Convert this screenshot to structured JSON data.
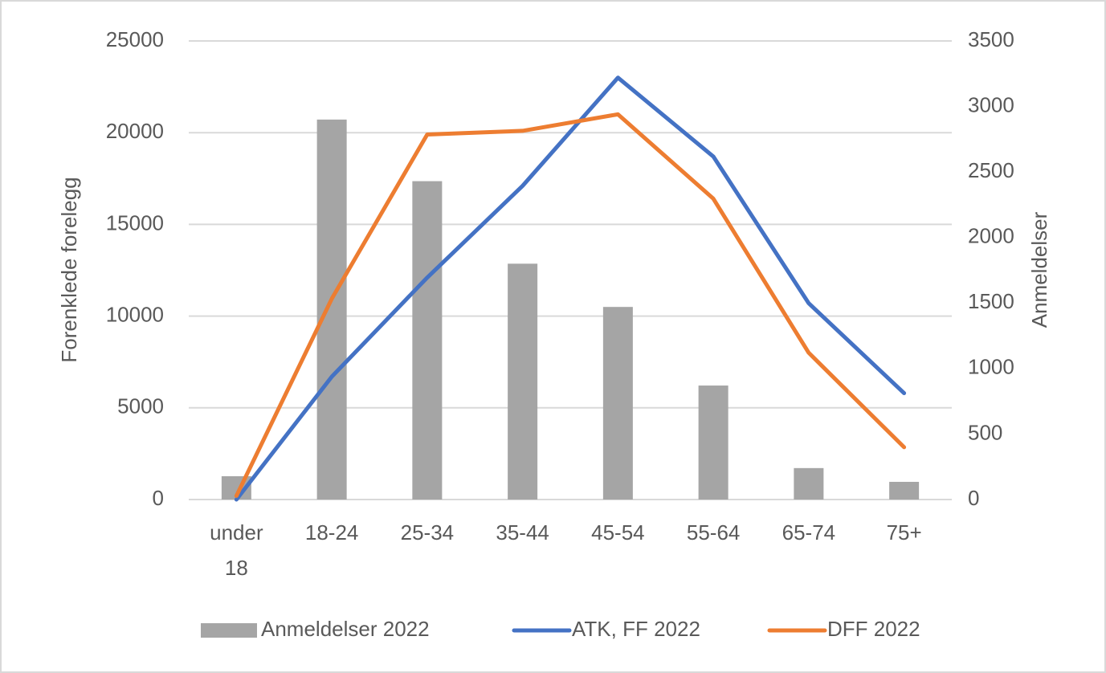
{
  "chart_data": {
    "type": "bar-line",
    "categories": [
      "under 18",
      "18-24",
      "25-34",
      "35-44",
      "45-54",
      "55-64",
      "65-74",
      "75+"
    ],
    "ylabel": "Forenklede forelegg",
    "y2label": "Anmeldelser",
    "ylim": [
      0,
      25000
    ],
    "yticks": [
      0,
      5000,
      10000,
      15000,
      20000,
      25000
    ],
    "y2lim": [
      0,
      3500
    ],
    "y2ticks": [
      0,
      500,
      1000,
      1500,
      2000,
      2500,
      3000,
      3500
    ],
    "grid": true,
    "legend": "bottom",
    "series": [
      {
        "name": "Anmeldelser 2022",
        "type": "bar",
        "axis": "y2",
        "color": "#a5a5a5",
        "values": [
          178,
          2900,
          2430,
          1800,
          1470,
          870,
          240,
          135
        ]
      },
      {
        "name": "ATK, FF 2022",
        "type": "line",
        "color": "#4472c4",
        "values": [
          0,
          6700,
          12100,
          17100,
          23000,
          18700,
          10700,
          5800
        ]
      },
      {
        "name": "DFF 2022",
        "type": "line",
        "color": "#ed7d31",
        "values": [
          200,
          10950,
          19900,
          20100,
          21000,
          16400,
          8000,
          2850
        ]
      }
    ]
  }
}
